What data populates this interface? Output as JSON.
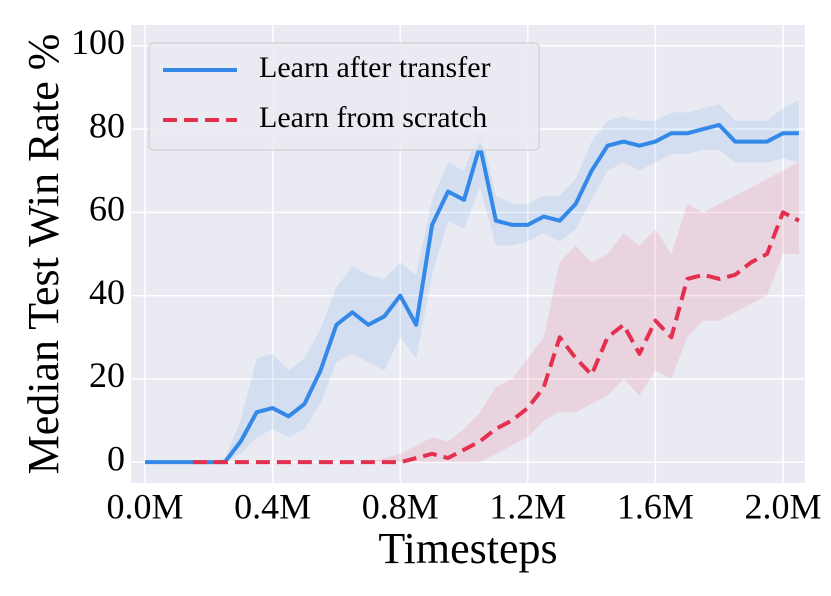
{
  "chart_data": {
    "type": "line",
    "y_label": "Median Test Win Rate %",
    "x_label": "Timesteps",
    "x": [
      0,
      50000,
      100000,
      150000,
      200000,
      250000,
      300000,
      350000,
      400000,
      450000,
      500000,
      550000,
      600000,
      650000,
      700000,
      750000,
      800000,
      850000,
      900000,
      950000,
      1000000,
      1050000,
      1100000,
      1150000,
      1200000,
      1250000,
      1300000,
      1350000,
      1400000,
      1450000,
      1500000,
      1550000,
      1600000,
      1650000,
      1700000,
      1750000,
      1800000,
      1850000,
      1900000,
      1950000,
      2000000,
      2050000
    ],
    "series": [
      {
        "name": "Learn after transfer",
        "color": "#3388e8",
        "dash": false,
        "values": [
          0,
          0,
          0,
          0,
          0,
          0,
          5,
          12,
          13,
          11,
          14,
          22,
          33,
          36,
          33,
          35,
          40,
          33,
          57,
          65,
          63,
          76,
          58,
          57,
          57,
          59,
          58,
          62,
          70,
          76,
          77,
          76,
          77,
          79,
          79,
          80,
          81,
          77,
          77,
          77,
          79,
          79
        ],
        "lower": [
          0,
          0,
          0,
          0,
          0,
          0,
          2,
          6,
          8,
          6,
          8,
          14,
          24,
          26,
          24,
          22,
          30,
          25,
          45,
          58,
          56,
          66,
          52,
          52,
          53,
          55,
          53,
          56,
          63,
          70,
          72,
          70,
          72,
          74,
          74,
          75,
          75,
          72,
          72,
          72,
          73,
          72
        ],
        "upper": [
          0,
          0,
          0,
          0,
          0,
          1,
          10,
          25,
          26,
          22,
          25,
          32,
          42,
          47,
          45,
          44,
          48,
          45,
          63,
          72,
          70,
          80,
          64,
          62,
          62,
          64,
          64,
          68,
          77,
          82,
          83,
          82,
          82,
          84,
          84,
          85,
          86,
          82,
          82,
          82,
          85,
          87
        ]
      },
      {
        "name": "Learn from scratch",
        "color": "#e3304f",
        "dash": true,
        "values": [
          null,
          null,
          null,
          0,
          0,
          0,
          0,
          0,
          0,
          0,
          0,
          0,
          0,
          0,
          0,
          0,
          0,
          1,
          2,
          1,
          3,
          5,
          8,
          10,
          13,
          18,
          30,
          25,
          21,
          30,
          33,
          26,
          34,
          30,
          44,
          45,
          44,
          45,
          48,
          50,
          60,
          58
        ],
        "lower": [
          null,
          null,
          null,
          0,
          0,
          0,
          0,
          0,
          0,
          0,
          0,
          0,
          0,
          0,
          0,
          0,
          0,
          0,
          0,
          0,
          0,
          0,
          2,
          4,
          6,
          10,
          12,
          12,
          14,
          16,
          20,
          16,
          22,
          20,
          30,
          34,
          34,
          36,
          38,
          40,
          50,
          50
        ],
        "upper": [
          null,
          null,
          null,
          0,
          0,
          0,
          0,
          0,
          0,
          0,
          0,
          0,
          0,
          0,
          0,
          1,
          2,
          4,
          6,
          5,
          8,
          12,
          18,
          20,
          25,
          30,
          48,
          52,
          48,
          50,
          55,
          52,
          56,
          50,
          62,
          60,
          62,
          64,
          66,
          68,
          70,
          72
        ]
      }
    ],
    "xlim": [
      -44000,
      2069000
    ],
    "xticks": [
      {
        "value": 0,
        "label": "0.0M"
      },
      {
        "value": 400000,
        "label": "0.4M"
      },
      {
        "value": 800000,
        "label": "0.8M"
      },
      {
        "value": 1200000,
        "label": "1.2M"
      },
      {
        "value": 1600000,
        "label": "1.6M"
      },
      {
        "value": 2000000,
        "label": "2.0M"
      }
    ],
    "ylim": [
      -5,
      105
    ],
    "yticks": [
      0,
      20,
      40,
      60,
      80,
      100
    ],
    "grid": true,
    "legend": "upper-left"
  }
}
